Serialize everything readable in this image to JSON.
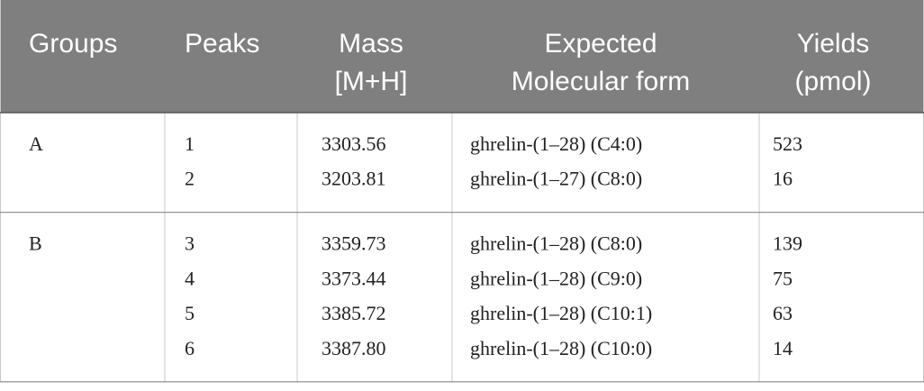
{
  "table": {
    "header": [
      [
        "Groups"
      ],
      [
        "Peaks"
      ],
      [
        "Mass",
        "[M+H]"
      ],
      [
        "Expected",
        "Molecular form"
      ],
      [
        "Yields",
        "(pmol)"
      ]
    ],
    "groups": [
      {
        "group": "A",
        "rows": [
          [
            "1",
            "3303.56",
            "ghrelin-(1–28) (C4:0)",
            "523"
          ],
          [
            "2",
            "3203.81",
            "ghrelin-(1–27) (C8:0)",
            "16"
          ]
        ]
      },
      {
        "group": "B",
        "rows": [
          [
            "3",
            "3359.73",
            "ghrelin-(1–28) (C8:0)",
            "139"
          ],
          [
            "4",
            "3373.44",
            "ghrelin-(1–28) (C9:0)",
            "75"
          ],
          [
            "5",
            "3385.72",
            "ghrelin-(1–28) (C10:1)",
            "63"
          ],
          [
            "6",
            "3387.80",
            "ghrelin-(1–28) (C10:0)",
            "14"
          ]
        ]
      }
    ]
  }
}
